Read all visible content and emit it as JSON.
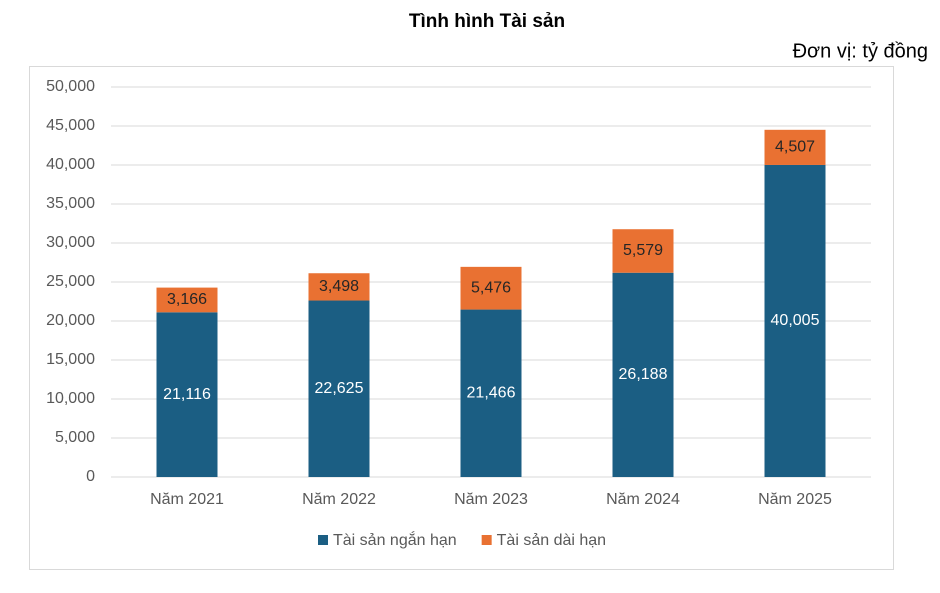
{
  "chart_data": {
    "type": "stacked_bar",
    "title": "Tình hình Tài sản",
    "subtitle": "Đơn vị: tỷ đồng",
    "categories": [
      "Năm 2021",
      "Năm 2022",
      "Năm 2023",
      "Năm 2024",
      "Năm 2025"
    ],
    "series": [
      {
        "name": "Tài sản ngắn hạn",
        "color": "#1b5e83",
        "values": [
          21116,
          22625,
          21466,
          26188,
          40005
        ],
        "value_labels": [
          "21,116",
          "22,625",
          "21,466",
          "26,188",
          "40,005"
        ]
      },
      {
        "name": "Tài sản dài hạn",
        "color": "#e97132",
        "values": [
          3166,
          3498,
          5476,
          5579,
          4507
        ],
        "value_labels": [
          "3,166",
          "3,498",
          "5,476",
          "5,579",
          "4,507"
        ]
      }
    ],
    "ylim": [
      0,
      50000
    ],
    "yticks": [
      0,
      {
        "value": 5000,
        "label": "5,000"
      },
      {
        "value": 10000,
        "label": "10,000"
      },
      {
        "value": 15000,
        "label": "15,000"
      },
      {
        "value": 20000,
        "label": "20,000"
      },
      {
        "value": 25000,
        "label": "25,000"
      },
      {
        "value": 30000,
        "label": "30,000"
      },
      {
        "value": 35000,
        "label": "35,000"
      },
      {
        "value": 40000,
        "label": "40,000"
      },
      {
        "value": 45000,
        "label": "45,000"
      },
      {
        "value": 50000,
        "label": "50,000"
      }
    ],
    "grid": true,
    "legend": "bottom"
  }
}
